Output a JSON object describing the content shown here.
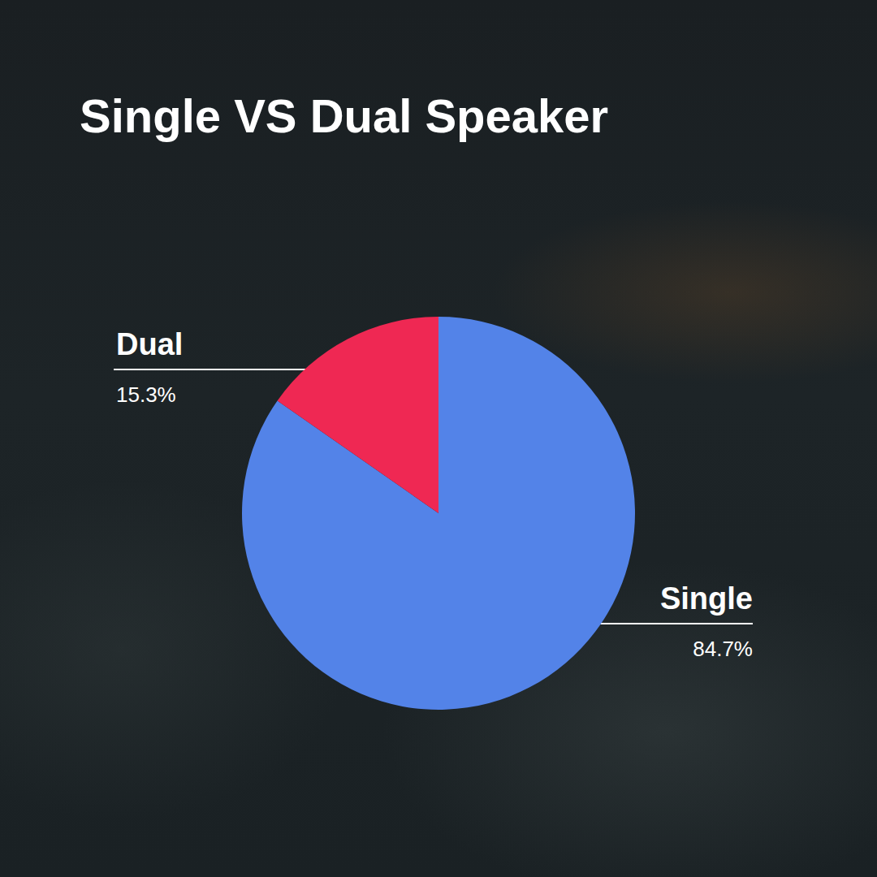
{
  "chart_data": {
    "type": "pie",
    "title": "Single VS Dual Speaker",
    "categories": [
      "Single",
      "Dual"
    ],
    "values": [
      84.7,
      15.3
    ],
    "value_labels": [
      "84.7%",
      "15.3%"
    ],
    "colors": [
      "#5383e8",
      "#ef2853"
    ],
    "data_labels": true
  }
}
